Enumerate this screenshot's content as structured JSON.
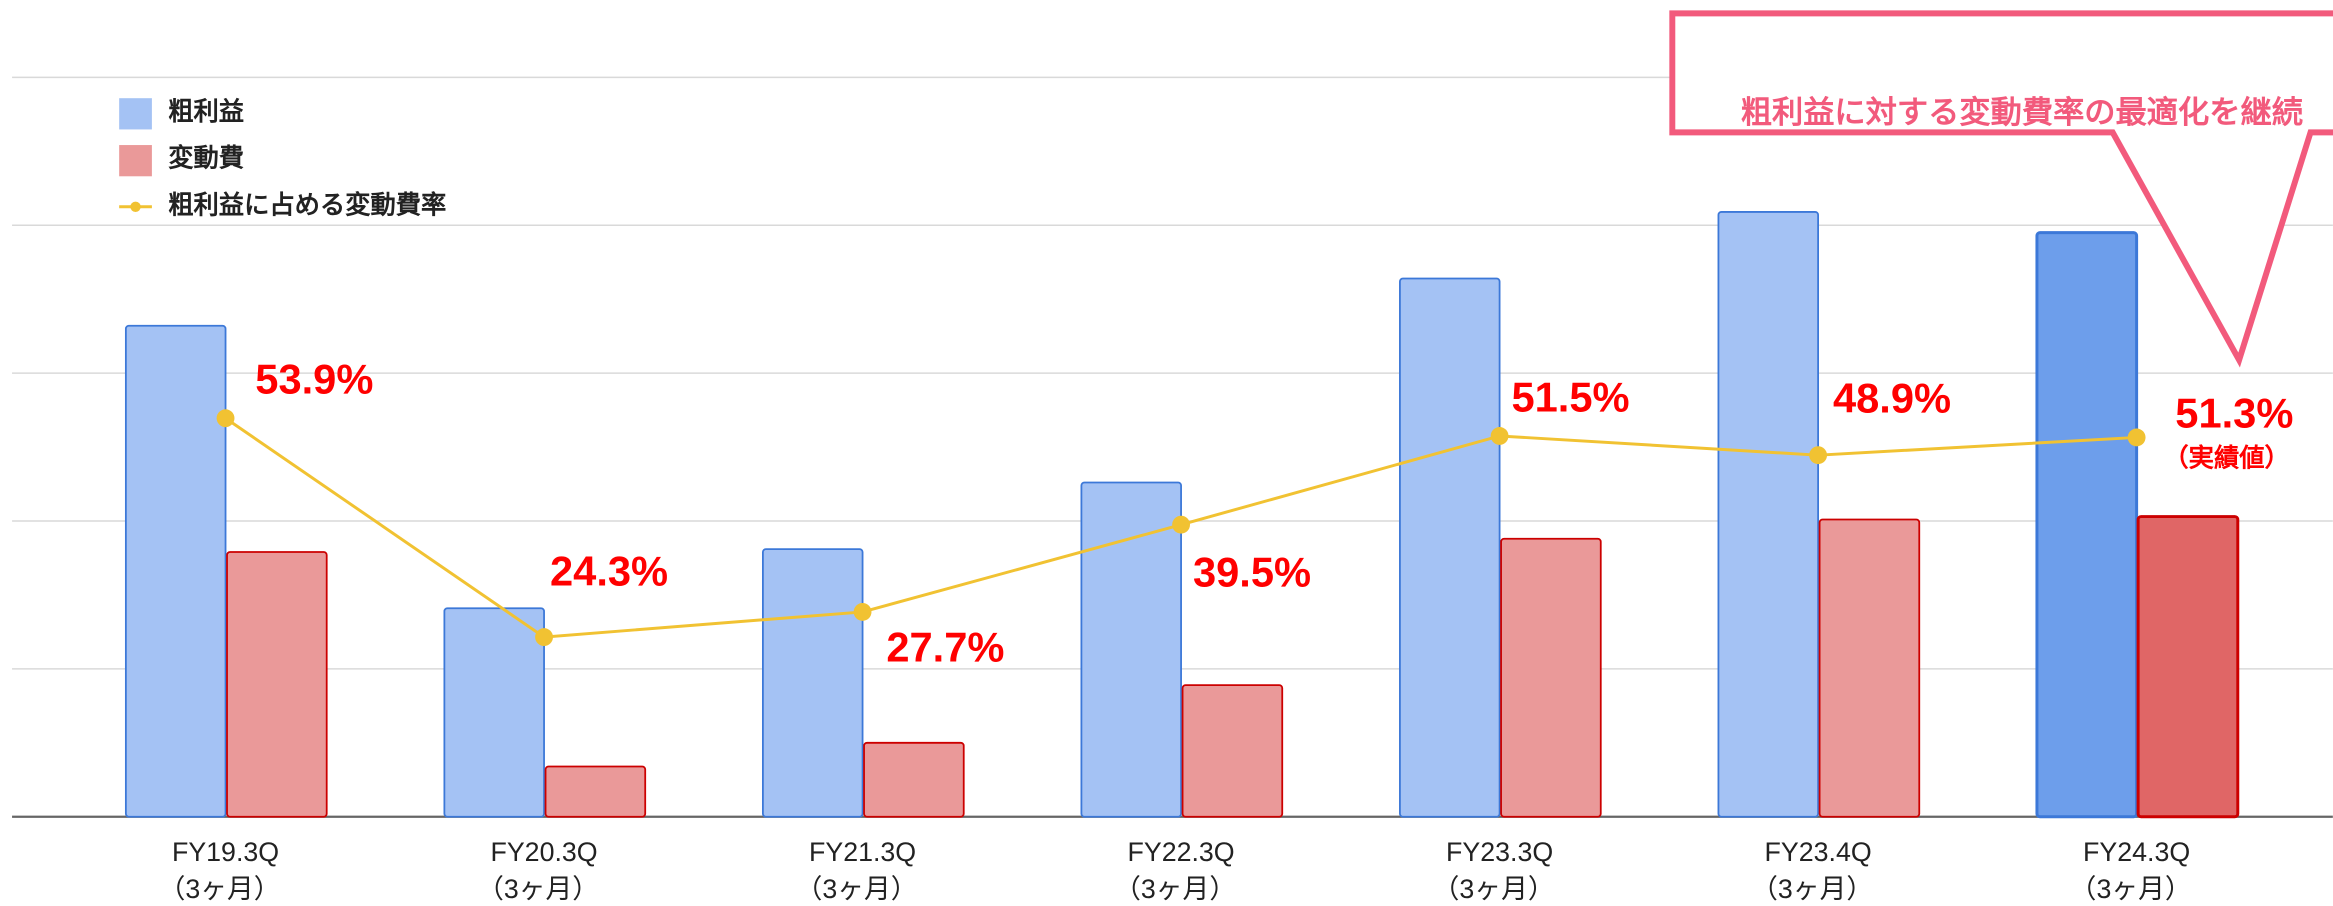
{
  "chart_data": {
    "type": "bar_line",
    "categories": [
      "FY19.3Q",
      "FY20.3Q",
      "FY21.3Q",
      "FY22.3Q",
      "FY23.3Q",
      "FY23.4Q",
      "FY24.3Q"
    ],
    "x_sublabels": [
      "（3ヶ月）",
      "（3ヶ月）",
      "（3ヶ月）",
      "（3ヶ月）",
      "（3ヶ月）",
      "（3ヶ月）",
      "（3ヶ月）"
    ],
    "ylim": [
      0,
      5
    ],
    "yticks": [
      0,
      1,
      2,
      3,
      4,
      5
    ],
    "y2lim": [
      0,
      100
    ],
    "grid": true,
    "series": [
      {
        "name": "粗利益",
        "type": "bar",
        "color": "#a4c2f4",
        "stroke": "#3c78d8",
        "colors": [
          "#a4c2f4",
          "#a4c2f4",
          "#a4c2f4",
          "#a4c2f4",
          "#a4c2f4",
          "#a4c2f4",
          "#6d9eeb"
        ],
        "values": [
          3.32,
          1.41,
          1.81,
          2.26,
          3.64,
          4.09,
          3.95
        ]
      },
      {
        "name": "変動費",
        "type": "bar",
        "color": "#ea9999",
        "stroke": "#cc0000",
        "colors": [
          "#ea9999",
          "#ea9999",
          "#ea9999",
          "#ea9999",
          "#ea9999",
          "#ea9999",
          "#e06666"
        ],
        "values": [
          1.79,
          0.34,
          0.5,
          0.89,
          1.88,
          2.01,
          2.03
        ]
      },
      {
        "name": "粗利益に占める変動費率",
        "type": "line",
        "axis": "y2",
        "color": "#f1c232",
        "values": [
          53.9,
          24.3,
          27.7,
          39.5,
          51.5,
          48.9,
          51.3
        ],
        "value_labels": [
          "53.9%",
          "24.3%",
          "27.7%",
          "39.5%",
          "51.5%",
          "48.9%",
          "51.3%"
        ],
        "label_color": "#ff0000"
      }
    ],
    "annotations": [
      {
        "text": "（実績値）",
        "point": 6
      }
    ],
    "callout": {
      "text": "粗利益に対する変動費率の最適化を継続",
      "color": "#f25a7c"
    }
  }
}
